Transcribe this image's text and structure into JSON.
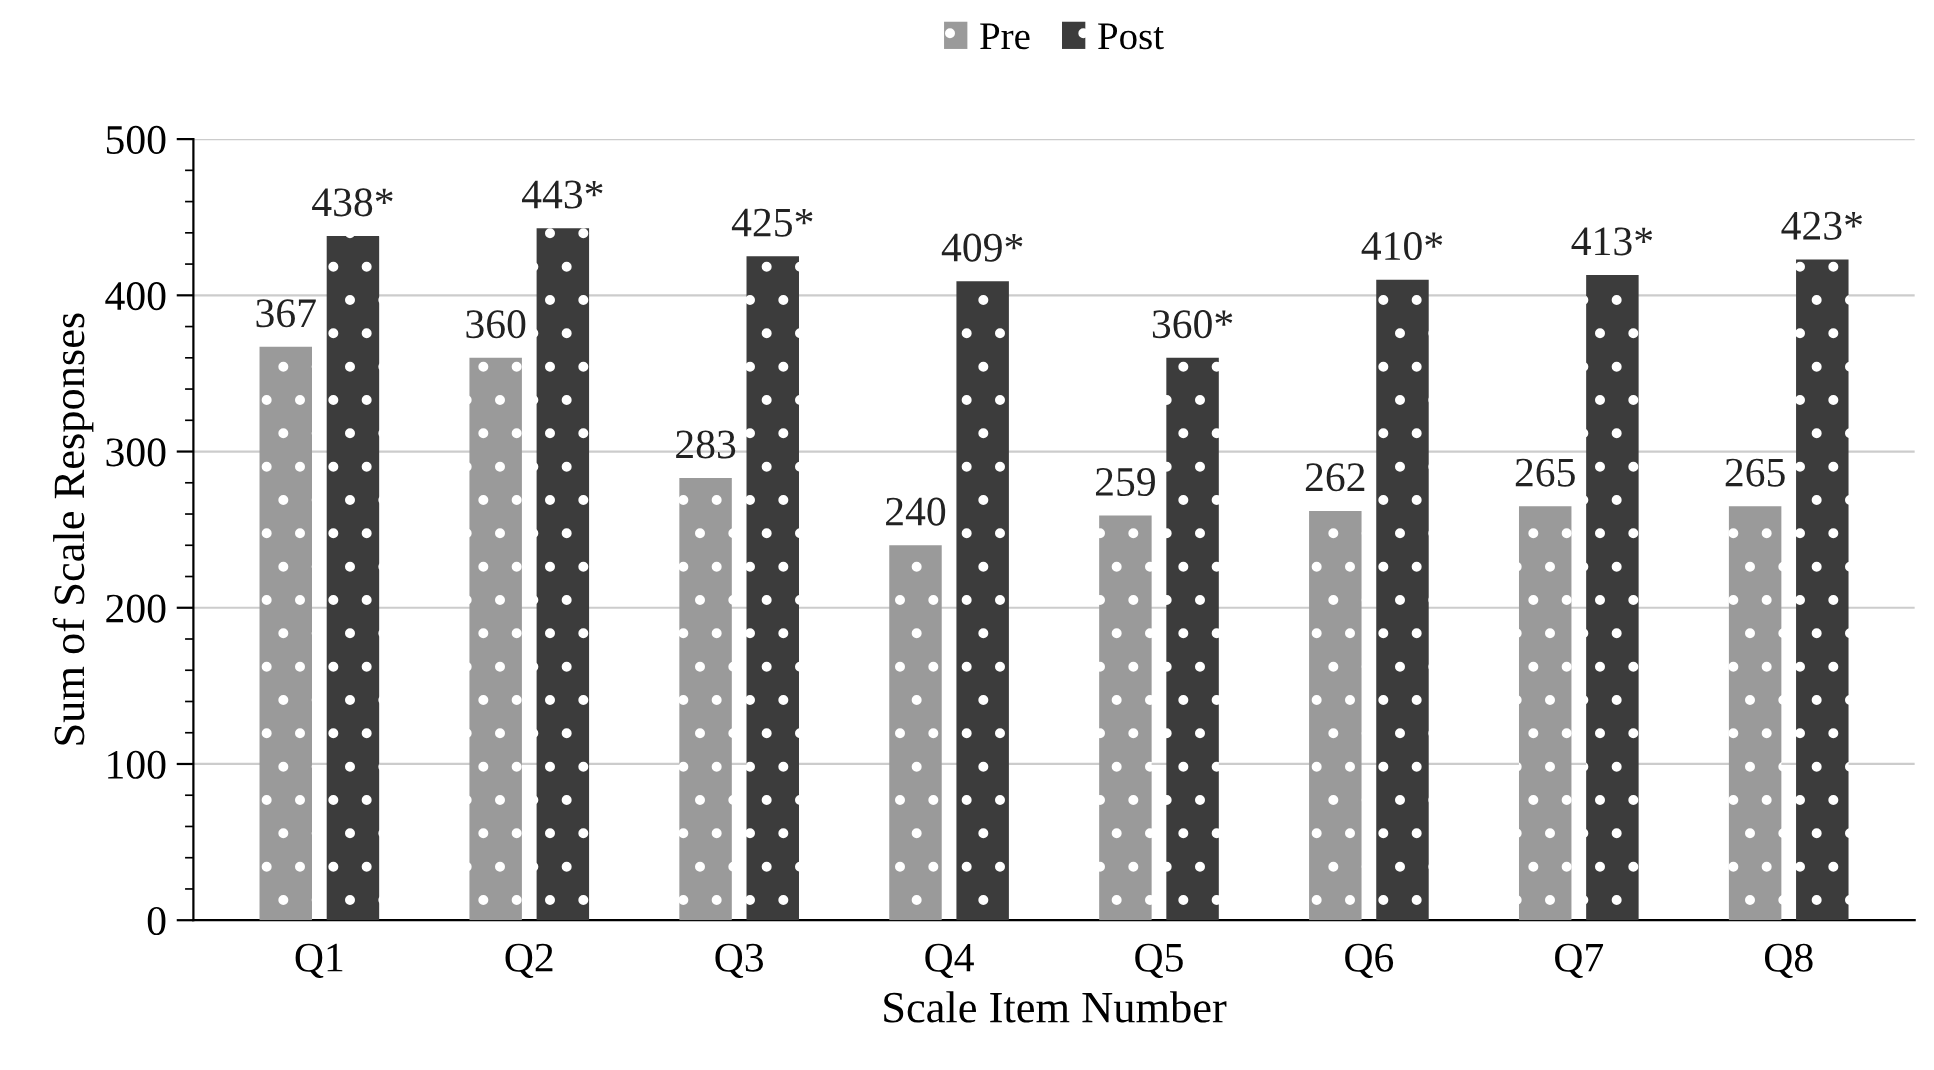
{
  "chart_data": {
    "type": "bar",
    "xlabel": "Scale Item Number",
    "ylabel": "Sum of Scale Responses",
    "categories": [
      "Q1",
      "Q2",
      "Q3",
      "Q4",
      "Q5",
      "Q6",
      "Q7",
      "Q8"
    ],
    "series": [
      {
        "name": "Pre",
        "color": "#9a9a9a",
        "values": [
          367,
          360,
          283,
          240,
          259,
          262,
          265,
          265
        ],
        "value_labels": [
          "367",
          "360",
          "283",
          "240",
          "259",
          "262",
          "265",
          "265"
        ]
      },
      {
        "name": "Post",
        "color": "#3c3c3c",
        "values": [
          438,
          443,
          425,
          409,
          360,
          410,
          413,
          423
        ],
        "value_labels": [
          "438*",
          "443*",
          "425*",
          "409*",
          "360*",
          "410*",
          "413*",
          "423*"
        ]
      }
    ],
    "ylim": [
      0,
      500
    ],
    "yticks": [
      0,
      100,
      200,
      300,
      400,
      500
    ],
    "grid": "y",
    "legend": "top"
  }
}
